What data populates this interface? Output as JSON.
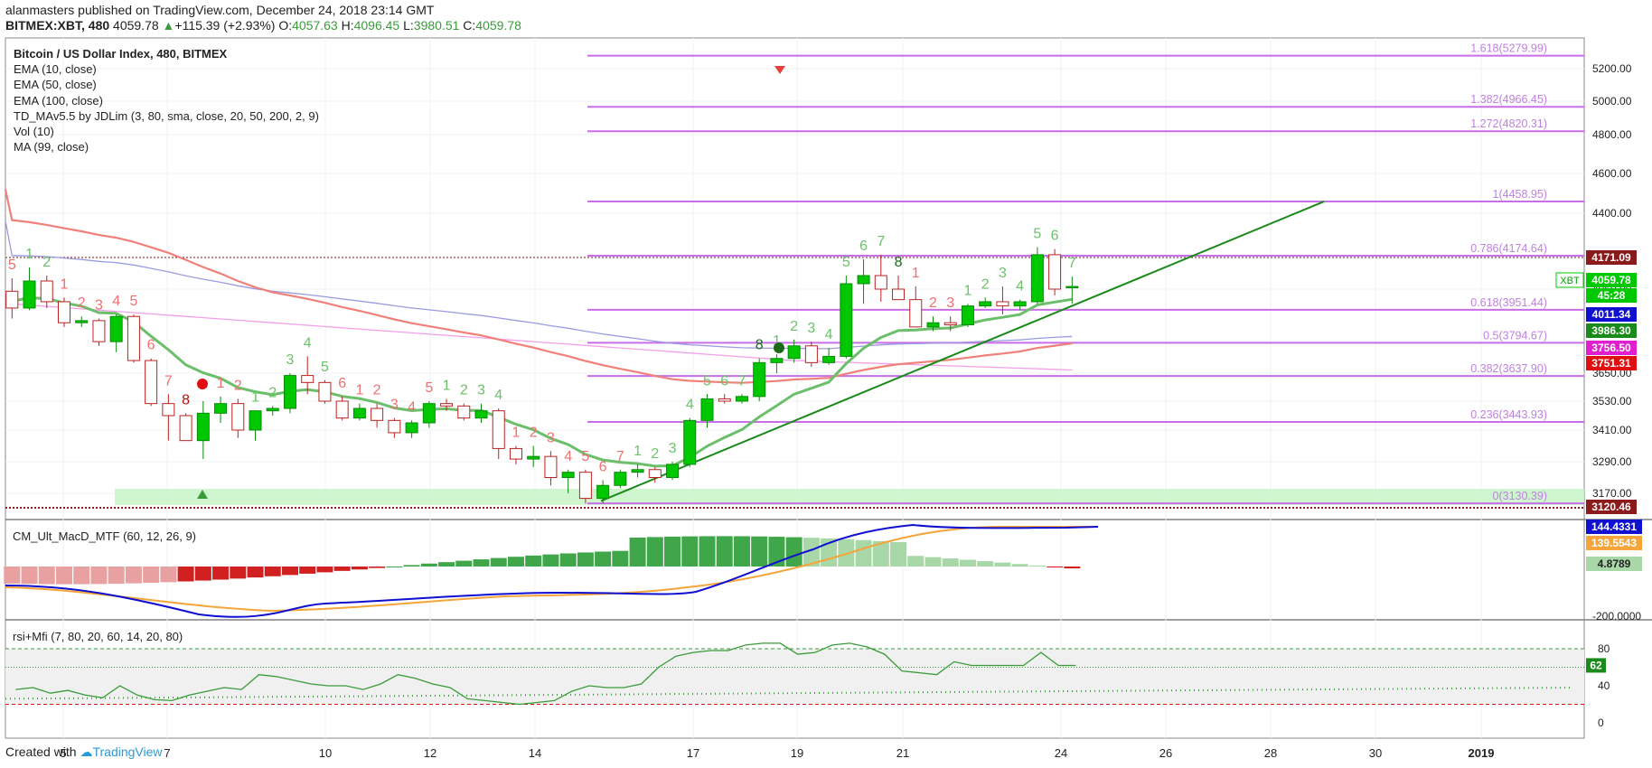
{
  "header": {
    "publisher": "alanmasters",
    "published_text": "published on TradingView.com, December 24, 2018 23:14 GMT",
    "symbol": "BITMEX:XBT, 480",
    "last": "4059.78",
    "change_arrow": "▲",
    "change": "+115.39 (+2.93%)",
    "o_label": "O:",
    "o": "4057.63",
    "h_label": "H:",
    "h": "4096.45",
    "l_label": "L:",
    "l": "3980.51",
    "c_label": "C:",
    "c": "4059.78"
  },
  "legend": {
    "title": "Bitcoin / US Dollar Index, 480, BITMEX",
    "items": [
      "EMA (10, close)",
      "EMA (50, close)",
      "EMA (100, close)",
      "TD_MAv5.5 by JDLim (3, 80, sma, close, 20, 50, 200, 2, 9)",
      "Vol (10)",
      "MA (99, close)"
    ]
  },
  "footer": {
    "created_with": "Created with",
    "brand": "TradingView"
  },
  "colors": {
    "up": "#00c800",
    "down": "#e8413a",
    "ema10": "#6bbf6b",
    "ema50": "#f0807a",
    "ema100": "#9b9be0",
    "ma99": "#f4a0e8",
    "fib": "#c86ee8",
    "trend": "#1a8a1a",
    "macd": "#1010d0",
    "signal": "#f5a53a"
  },
  "chart_data": [
    {
      "type": "candlestick",
      "title": "Bitcoin / US Dollar Index, 480, BITMEX",
      "x_tick_labels": [
        "5",
        "7",
        "10",
        "12",
        "14",
        "17",
        "19",
        "21",
        "24",
        "26",
        "28",
        "30",
        "2019"
      ],
      "y_tick_labels": [
        "5200.00",
        "5000.00",
        "4800.00",
        "4600.00",
        "4400.00",
        "4170.00",
        "4050.00",
        "3650.00",
        "3530.00",
        "3410.00",
        "3290.00",
        "3170.00"
      ],
      "ohlc": [
        [
          4040,
          4090,
          3910,
          3960
        ],
        [
          3960,
          4130,
          3950,
          4080
        ],
        [
          4080,
          4100,
          3960,
          3990
        ],
        [
          3990,
          4010,
          3870,
          3890
        ],
        [
          3890,
          3920,
          3870,
          3900
        ],
        [
          3900,
          3910,
          3780,
          3800
        ],
        [
          3800,
          3930,
          3750,
          3920
        ],
        [
          3920,
          3930,
          3700,
          3710
        ],
        [
          3710,
          3720,
          3510,
          3520
        ],
        [
          3520,
          3560,
          3370,
          3470
        ],
        [
          3470,
          3480,
          3370,
          3370
        ],
        [
          3370,
          3530,
          3300,
          3480
        ],
        [
          3480,
          3550,
          3440,
          3520
        ],
        [
          3520,
          3540,
          3380,
          3410
        ],
        [
          3410,
          3490,
          3370,
          3490
        ],
        [
          3490,
          3510,
          3470,
          3500
        ],
        [
          3500,
          3650,
          3480,
          3640
        ],
        [
          3640,
          3730,
          3560,
          3610
        ],
        [
          3610,
          3620,
          3520,
          3530
        ],
        [
          3530,
          3550,
          3450,
          3460
        ],
        [
          3460,
          3520,
          3450,
          3500
        ],
        [
          3500,
          3520,
          3420,
          3450
        ],
        [
          3450,
          3460,
          3380,
          3400
        ],
        [
          3400,
          3450,
          3380,
          3440
        ],
        [
          3440,
          3530,
          3420,
          3520
        ],
        [
          3520,
          3540,
          3490,
          3510
        ],
        [
          3510,
          3520,
          3450,
          3460
        ],
        [
          3460,
          3520,
          3440,
          3490
        ],
        [
          3490,
          3500,
          3300,
          3340
        ],
        [
          3340,
          3350,
          3280,
          3300
        ],
        [
          3300,
          3350,
          3270,
          3310
        ],
        [
          3310,
          3330,
          3200,
          3230
        ],
        [
          3230,
          3260,
          3170,
          3250
        ],
        [
          3250,
          3260,
          3130,
          3150
        ],
        [
          3150,
          3220,
          3130,
          3200
        ],
        [
          3200,
          3260,
          3190,
          3250
        ],
        [
          3250,
          3280,
          3230,
          3260
        ],
        [
          3260,
          3270,
          3210,
          3230
        ],
        [
          3230,
          3290,
          3220,
          3280
        ],
        [
          3280,
          3460,
          3270,
          3450
        ],
        [
          3450,
          3560,
          3420,
          3540
        ],
        [
          3540,
          3560,
          3520,
          3530
        ],
        [
          3530,
          3560,
          3520,
          3550
        ],
        [
          3550,
          3720,
          3530,
          3700
        ],
        [
          3700,
          3740,
          3650,
          3720
        ],
        [
          3720,
          3810,
          3700,
          3780
        ],
        [
          3780,
          3800,
          3680,
          3700
        ],
        [
          3700,
          3770,
          3690,
          3730
        ],
        [
          3730,
          4100,
          3720,
          4070
        ],
        [
          4070,
          4160,
          3980,
          4100
        ],
        [
          4100,
          4180,
          3990,
          4050
        ],
        [
          4050,
          4100,
          4000,
          4000
        ],
        [
          4000,
          4060,
          3880,
          3870
        ],
        [
          3870,
          3920,
          3850,
          3890
        ],
        [
          3890,
          3920,
          3850,
          3880
        ],
        [
          3880,
          3980,
          3870,
          3970
        ],
        [
          3970,
          4010,
          3960,
          3990
        ],
        [
          3990,
          4060,
          3930,
          3970
        ],
        [
          3970,
          4000,
          3950,
          3990
        ],
        [
          3990,
          4220,
          3980,
          4180
        ],
        [
          4180,
          4210,
          4020,
          4050
        ],
        [
          4057.63,
          4096.45,
          3980.51,
          4059.78
        ]
      ],
      "fibonacci": [
        {
          "ratio": "1.618",
          "price": "5279.99"
        },
        {
          "ratio": "1.382",
          "price": "4966.45"
        },
        {
          "ratio": "1.272",
          "price": "4820.31"
        },
        {
          "ratio": "1",
          "price": "4458.95"
        },
        {
          "ratio": "0.786",
          "price": "4174.64"
        },
        {
          "ratio": "0.618",
          "price": "3951.44"
        },
        {
          "ratio": "0.5",
          "price": "3794.67"
        },
        {
          "ratio": "0.382",
          "price": "3637.90"
        },
        {
          "ratio": "0.236",
          "price": "3443.93"
        },
        {
          "ratio": "0",
          "price": "3130.39"
        }
      ],
      "price_badges": [
        {
          "text": "4171.09",
          "color": "#8b1a1a"
        },
        {
          "text": "4059.78",
          "color": "#00c800",
          "label": "XBT"
        },
        {
          "text": "45:28",
          "color": "#00c800"
        },
        {
          "text": "4011.34",
          "color": "#1010d0"
        },
        {
          "text": "3986.30",
          "color": "#1a8a1a"
        },
        {
          "text": "3756.50",
          "color": "#e020d0"
        },
        {
          "text": "3751.31",
          "color": "#e01010"
        },
        {
          "text": "3120.46",
          "color": "#8b1a1a"
        }
      ],
      "td_counts": [
        {
          "i": 0,
          "t": "5",
          "c": "r",
          "a": 1
        },
        {
          "i": 1,
          "t": "1",
          "c": "g",
          "a": 1
        },
        {
          "i": 2,
          "t": "2",
          "c": "g",
          "a": 1
        },
        {
          "i": 3,
          "t": "1",
          "c": "r",
          "a": 1
        },
        {
          "i": 4,
          "t": "2",
          "c": "r",
          "a": 1
        },
        {
          "i": 5,
          "t": "3",
          "c": "r",
          "a": 1
        },
        {
          "i": 6,
          "t": "4",
          "c": "r",
          "a": 1
        },
        {
          "i": 7,
          "t": "5",
          "c": "r",
          "a": 1
        },
        {
          "i": 8,
          "t": "6",
          "c": "r",
          "a": 1
        },
        {
          "i": 9,
          "t": "7",
          "c": "r",
          "a": 1
        },
        {
          "i": 10,
          "t": "8",
          "c": "dr",
          "a": 1
        },
        {
          "i": 12,
          "t": "1",
          "c": "r",
          "a": 1
        },
        {
          "i": 13,
          "t": "2",
          "c": "r",
          "a": 1
        },
        {
          "i": 14,
          "t": "1",
          "c": "g",
          "a": 1
        },
        {
          "i": 15,
          "t": "2",
          "c": "g",
          "a": 1
        },
        {
          "i": 16,
          "t": "3",
          "c": "g",
          "a": 1
        },
        {
          "i": 17,
          "t": "4",
          "c": "g",
          "a": 1
        },
        {
          "i": 18,
          "t": "5",
          "c": "g",
          "a": 1
        },
        {
          "i": 19,
          "t": "6",
          "c": "r",
          "a": 1
        },
        {
          "i": 20,
          "t": "1",
          "c": "r",
          "a": 1
        },
        {
          "i": 21,
          "t": "2",
          "c": "r",
          "a": 1
        },
        {
          "i": 22,
          "t": "3",
          "c": "r",
          "a": 1
        },
        {
          "i": 23,
          "t": "4",
          "c": "r",
          "a": 1
        },
        {
          "i": 24,
          "t": "5",
          "c": "r",
          "a": 1
        },
        {
          "i": 25,
          "t": "1",
          "c": "g",
          "a": 1
        },
        {
          "i": 26,
          "t": "2",
          "c": "g",
          "a": 1
        },
        {
          "i": 27,
          "t": "3",
          "c": "g",
          "a": 1
        },
        {
          "i": 28,
          "t": "4",
          "c": "g",
          "a": 1
        },
        {
          "i": 29,
          "t": "1",
          "c": "r",
          "a": 1
        },
        {
          "i": 30,
          "t": "2",
          "c": "r",
          "a": 1
        },
        {
          "i": 31,
          "t": "3",
          "c": "r",
          "a": 1
        },
        {
          "i": 32,
          "t": "4",
          "c": "r",
          "a": 1
        },
        {
          "i": 33,
          "t": "5",
          "c": "r",
          "a": 1
        },
        {
          "i": 34,
          "t": "6",
          "c": "r",
          "a": 1
        },
        {
          "i": 35,
          "t": "7",
          "c": "r",
          "a": 1
        },
        {
          "i": 36,
          "t": "1",
          "c": "g",
          "a": 1
        },
        {
          "i": 37,
          "t": "2",
          "c": "g",
          "a": 1
        },
        {
          "i": 38,
          "t": "3",
          "c": "g",
          "a": 1
        },
        {
          "i": 39,
          "t": "4",
          "c": "g",
          "a": 1
        },
        {
          "i": 40,
          "t": "5",
          "c": "g",
          "a": 1
        },
        {
          "i": 41,
          "t": "6",
          "c": "g",
          "a": 1
        },
        {
          "i": 42,
          "t": "7",
          "c": "g",
          "a": 1
        },
        {
          "i": 43,
          "t": "8",
          "c": "dg",
          "a": 1
        },
        {
          "i": 44,
          "t": "1",
          "c": "g",
          "a": 1
        },
        {
          "i": 45,
          "t": "2",
          "c": "g",
          "a": 1
        },
        {
          "i": 46,
          "t": "3",
          "c": "g",
          "a": 1
        },
        {
          "i": 47,
          "t": "4",
          "c": "g",
          "a": 1
        },
        {
          "i": 48,
          "t": "5",
          "c": "g",
          "a": 1
        },
        {
          "i": 49,
          "t": "6",
          "c": "g",
          "a": 1
        },
        {
          "i": 50,
          "t": "7",
          "c": "g",
          "a": 1
        },
        {
          "i": 51,
          "t": "8",
          "c": "dg",
          "a": 1
        },
        {
          "i": 52,
          "t": "1",
          "c": "r",
          "a": 1
        },
        {
          "i": 53,
          "t": "2",
          "c": "r",
          "a": 1
        },
        {
          "i": 54,
          "t": "3",
          "c": "r",
          "a": 1
        },
        {
          "i": 55,
          "t": "1",
          "c": "g",
          "a": 1
        },
        {
          "i": 56,
          "t": "2",
          "c": "g",
          "a": 1
        },
        {
          "i": 57,
          "t": "3",
          "c": "g",
          "a": 1
        },
        {
          "i": 58,
          "t": "4",
          "c": "g",
          "a": 1
        },
        {
          "i": 59,
          "t": "5",
          "c": "g",
          "a": 1
        },
        {
          "i": 60,
          "t": "6",
          "c": "g",
          "a": 1
        },
        {
          "i": 61,
          "t": "7",
          "c": "g",
          "a": 1
        }
      ]
    },
    {
      "type": "line",
      "title": "CM_Ult_MacD_MTF (60, 12, 26, 9)",
      "y_tick_labels": [
        "-200.0000"
      ],
      "badges": [
        {
          "text": "144.4331",
          "color": "#1010d0"
        },
        {
          "text": "139.5543",
          "color": "#f5a53a"
        },
        {
          "text": "4.8789",
          "color": "#a8d8a8"
        }
      ]
    },
    {
      "type": "line",
      "title": "rsi+Mfi (7, 80, 20, 60, 14, 20, 80)",
      "y_tick_labels": [
        "80",
        "40",
        "0"
      ],
      "badges": [
        {
          "text": "62",
          "color": "#1a8a1a"
        }
      ]
    }
  ]
}
